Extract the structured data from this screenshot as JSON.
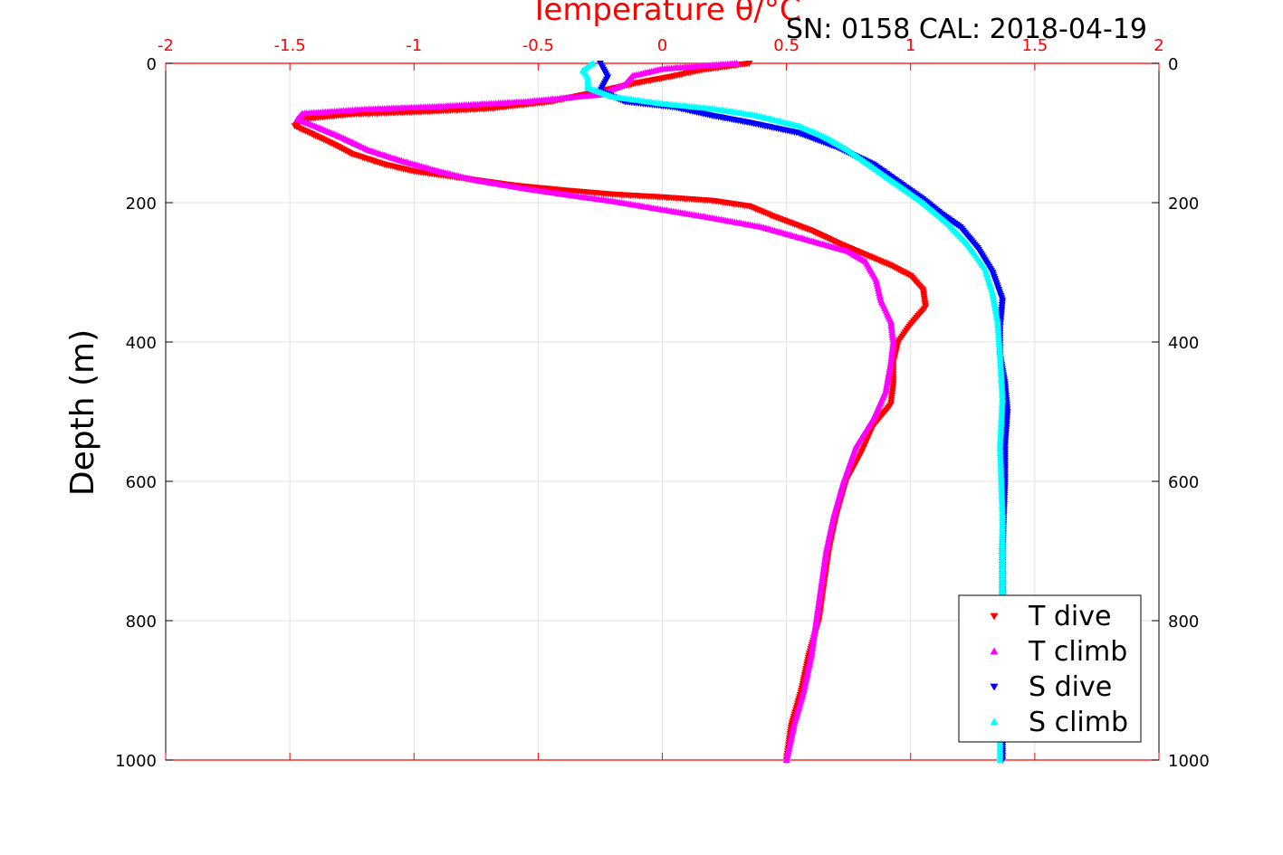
{
  "chart_data": {
    "type": "scatter",
    "title": "Temperature θ/°C",
    "subtitle": "SN: 0158  CAL: 2018-04-19",
    "xlabel": "",
    "ylabel": "Depth (m)",
    "xlim": [
      -2,
      2
    ],
    "ylim": [
      0,
      1000
    ],
    "y_reversed": true,
    "grid": true,
    "legend_position": "bottom-right",
    "x_ticks": [
      "-2",
      "-1.5",
      "-1",
      "-0.5",
      "0",
      "0.5",
      "1",
      "1.5",
      "2"
    ],
    "y_ticks": [
      "0",
      "200",
      "400",
      "600",
      "800",
      "1000"
    ],
    "top_axis_color": "#ff0000",
    "series": [
      {
        "name": "T dive",
        "color": "#ff0000",
        "marker": "triangle-down",
        "points": [
          [
            0.35,
            0
          ],
          [
            0.15,
            10
          ],
          [
            0.05,
            18
          ],
          [
            -0.1,
            28
          ],
          [
            -0.25,
            40
          ],
          [
            -0.45,
            55
          ],
          [
            -0.7,
            65
          ],
          [
            -1.0,
            70
          ],
          [
            -1.25,
            73
          ],
          [
            -1.45,
            80
          ],
          [
            -1.48,
            90
          ],
          [
            -1.42,
            100
          ],
          [
            -1.33,
            115
          ],
          [
            -1.25,
            130
          ],
          [
            -1.12,
            145
          ],
          [
            -1.0,
            155
          ],
          [
            -0.8,
            165
          ],
          [
            -0.6,
            175
          ],
          [
            -0.4,
            182
          ],
          [
            -0.2,
            188
          ],
          [
            0.0,
            192
          ],
          [
            0.2,
            197
          ],
          [
            0.35,
            205
          ],
          [
            0.45,
            220
          ],
          [
            0.6,
            240
          ],
          [
            0.72,
            260
          ],
          [
            0.82,
            275
          ],
          [
            0.92,
            290
          ],
          [
            1.0,
            305
          ],
          [
            1.05,
            325
          ],
          [
            1.06,
            350
          ],
          [
            1.0,
            375
          ],
          [
            0.95,
            400
          ],
          [
            0.93,
            430
          ],
          [
            0.93,
            460
          ],
          [
            0.92,
            490
          ],
          [
            0.85,
            520
          ],
          [
            0.8,
            560
          ],
          [
            0.74,
            600
          ],
          [
            0.7,
            650
          ],
          [
            0.67,
            700
          ],
          [
            0.65,
            750
          ],
          [
            0.63,
            800
          ],
          [
            0.59,
            850
          ],
          [
            0.56,
            900
          ],
          [
            0.52,
            950
          ],
          [
            0.5,
            1000
          ]
        ]
      },
      {
        "name": "T climb",
        "color": "#ff00ff",
        "marker": "triangle-up",
        "points": [
          [
            0.3,
            0
          ],
          [
            0.0,
            8
          ],
          [
            -0.12,
            18
          ],
          [
            -0.15,
            30
          ],
          [
            -0.25,
            45
          ],
          [
            -0.55,
            55
          ],
          [
            -0.9,
            62
          ],
          [
            -1.2,
            66
          ],
          [
            -1.45,
            72
          ],
          [
            -1.47,
            80
          ],
          [
            -1.4,
            90
          ],
          [
            -1.3,
            105
          ],
          [
            -1.18,
            125
          ],
          [
            -1.05,
            140
          ],
          [
            -0.9,
            155
          ],
          [
            -0.75,
            168
          ],
          [
            -0.55,
            180
          ],
          [
            -0.4,
            188
          ],
          [
            -0.2,
            198
          ],
          [
            0.0,
            210
          ],
          [
            0.2,
            222
          ],
          [
            0.4,
            235
          ],
          [
            0.6,
            255
          ],
          [
            0.75,
            270
          ],
          [
            0.82,
            285
          ],
          [
            0.86,
            310
          ],
          [
            0.88,
            340
          ],
          [
            0.92,
            370
          ],
          [
            0.93,
            400
          ],
          [
            0.92,
            430
          ],
          [
            0.9,
            470
          ],
          [
            0.85,
            510
          ],
          [
            0.78,
            550
          ],
          [
            0.73,
            600
          ],
          [
            0.69,
            650
          ],
          [
            0.66,
            700
          ],
          [
            0.64,
            750
          ],
          [
            0.62,
            800
          ],
          [
            0.6,
            850
          ],
          [
            0.57,
            900
          ],
          [
            0.53,
            950
          ],
          [
            0.5,
            1000
          ]
        ]
      },
      {
        "name": "S dive",
        "color": "#0000ff",
        "marker": "triangle-down",
        "points": [
          [
            -0.25,
            0
          ],
          [
            -0.22,
            20
          ],
          [
            -0.25,
            40
          ],
          [
            -0.15,
            55
          ],
          [
            0.05,
            63
          ],
          [
            0.2,
            75
          ],
          [
            0.35,
            85
          ],
          [
            0.55,
            100
          ],
          [
            0.7,
            120
          ],
          [
            0.85,
            145
          ],
          [
            0.95,
            170
          ],
          [
            1.05,
            195
          ],
          [
            1.12,
            215
          ],
          [
            1.2,
            235
          ],
          [
            1.27,
            265
          ],
          [
            1.33,
            300
          ],
          [
            1.37,
            340
          ],
          [
            1.36,
            380
          ],
          [
            1.36,
            420
          ],
          [
            1.38,
            460
          ],
          [
            1.39,
            500
          ],
          [
            1.38,
            550
          ],
          [
            1.38,
            600
          ],
          [
            1.37,
            700
          ],
          [
            1.37,
            800
          ],
          [
            1.37,
            900
          ],
          [
            1.37,
            1000
          ]
        ]
      },
      {
        "name": "S climb",
        "color": "#00ffff",
        "marker": "triangle-up",
        "points": [
          [
            -0.28,
            0
          ],
          [
            -0.32,
            10
          ],
          [
            -0.3,
            20
          ],
          [
            -0.3,
            35
          ],
          [
            -0.2,
            48
          ],
          [
            0.0,
            58
          ],
          [
            0.2,
            65
          ],
          [
            0.38,
            75
          ],
          [
            0.55,
            90
          ],
          [
            0.65,
            105
          ],
          [
            0.75,
            125
          ],
          [
            0.85,
            150
          ],
          [
            0.95,
            175
          ],
          [
            1.05,
            200
          ],
          [
            1.15,
            230
          ],
          [
            1.23,
            260
          ],
          [
            1.3,
            295
          ],
          [
            1.33,
            330
          ],
          [
            1.35,
            370
          ],
          [
            1.36,
            420
          ],
          [
            1.37,
            480
          ],
          [
            1.36,
            550
          ],
          [
            1.37,
            650
          ],
          [
            1.37,
            750
          ],
          [
            1.37,
            850
          ],
          [
            1.36,
            950
          ],
          [
            1.36,
            1000
          ]
        ]
      }
    ]
  }
}
